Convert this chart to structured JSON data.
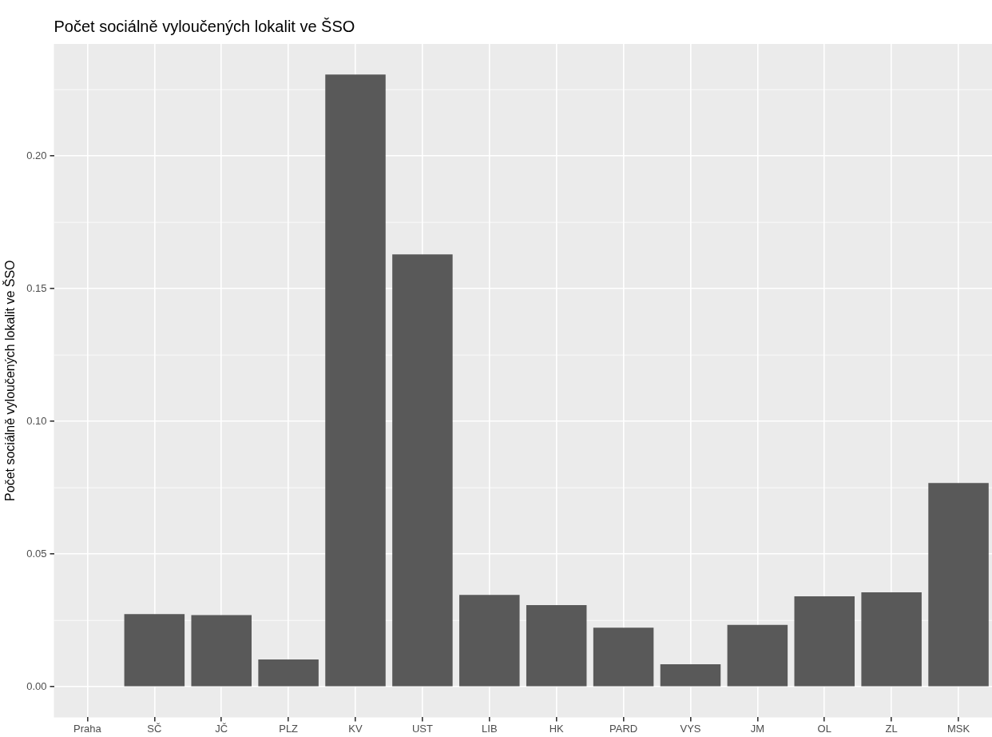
{
  "chart_data": {
    "type": "bar",
    "title": "Počet sociálně vyloučených lokalit ve ŠSO",
    "ylabel": "Počet sociálně vyloučených lokalit ve ŠSO",
    "categories": [
      "Praha",
      "SČ",
      "JČ",
      "PLZ",
      "KV",
      "UST",
      "LIB",
      "HK",
      "PARD",
      "VYS",
      "JM",
      "OL",
      "ZL",
      "MSK"
    ],
    "values": [
      0,
      0.0274,
      0.027,
      0.0103,
      0.2307,
      0.1629,
      0.0346,
      0.0308,
      0.0223,
      0.0085,
      0.0233,
      0.0341,
      0.0356,
      0.0768
    ],
    "color": "#595959",
    "ylim": [
      -0.0115,
      0.2422
    ],
    "yticks": [
      {
        "value": 0,
        "label": "0.00"
      },
      {
        "value": 0.05,
        "label": "0.05"
      },
      {
        "value": 0.1,
        "label": "0.10"
      },
      {
        "value": 0.15,
        "label": "0.15"
      },
      {
        "value": 0.2,
        "label": "0.20"
      }
    ],
    "grid": true
  }
}
